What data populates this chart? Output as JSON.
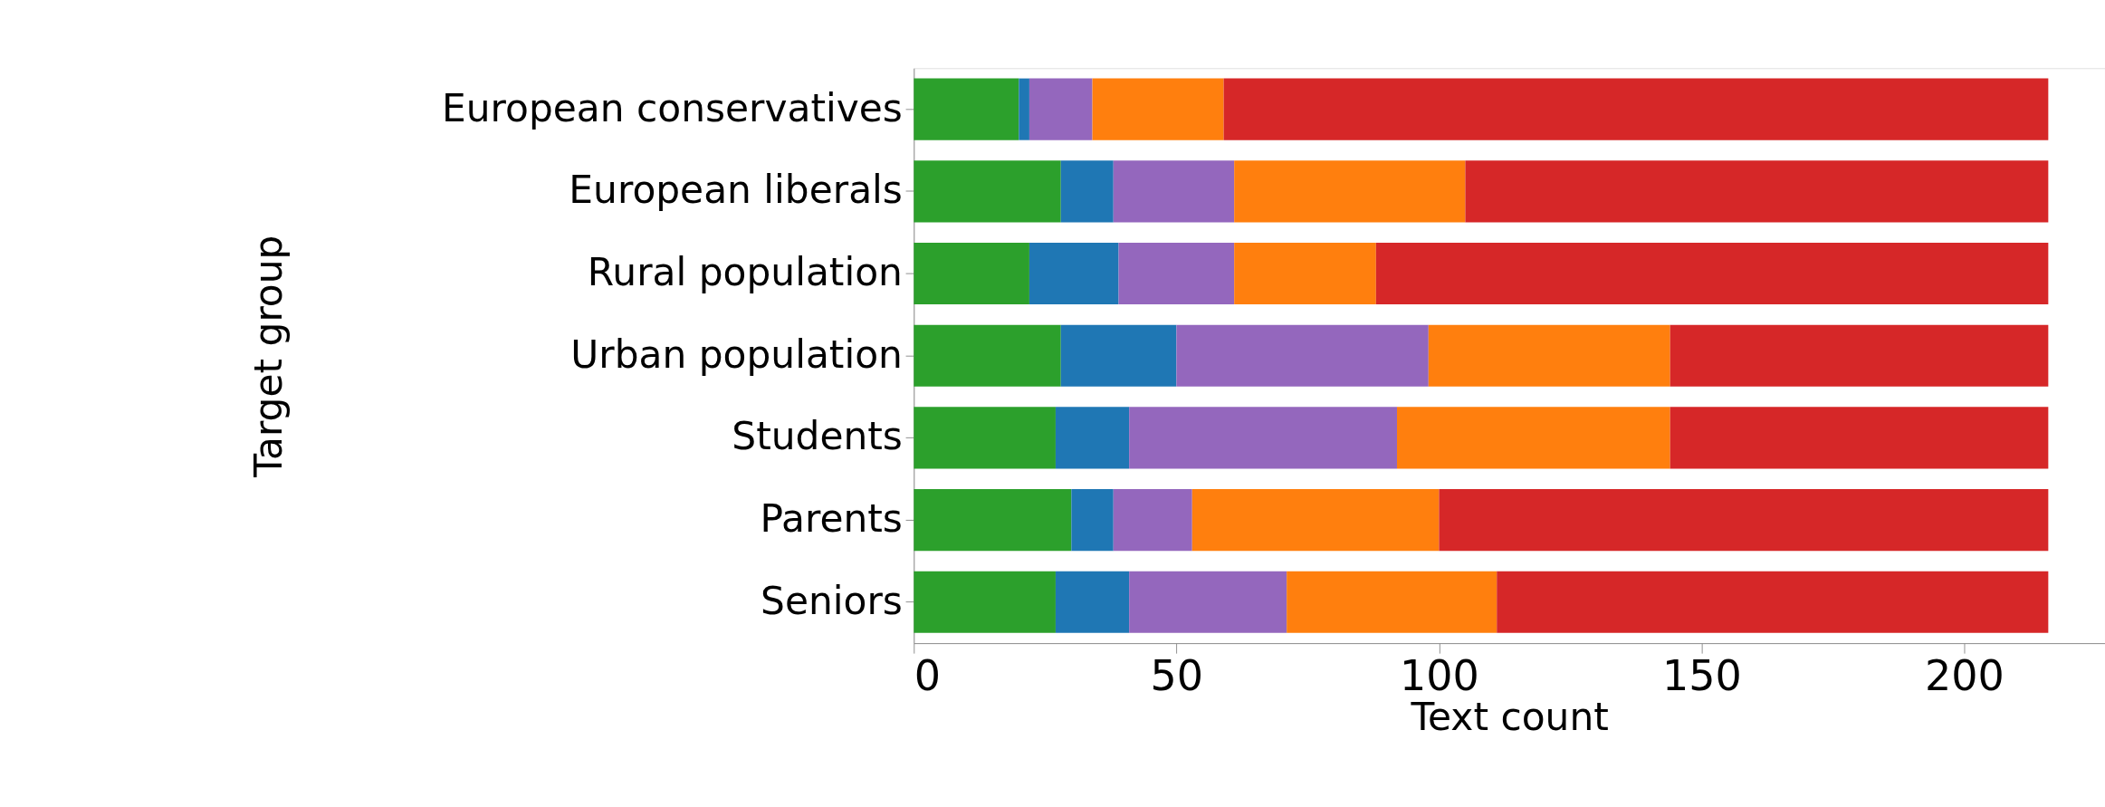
{
  "chart_data": {
    "type": "bar",
    "orientation": "horizontal",
    "stacked": true,
    "xlabel": "Text count",
    "ylabel": "Target group",
    "categories": [
      "European conservatives",
      "European liberals",
      "Rural population",
      "Urban population",
      "Students",
      "Parents",
      "Seniors"
    ],
    "series": [
      {
        "color": "#2ca02c",
        "values": [
          20,
          28,
          22,
          28,
          27,
          30,
          27
        ]
      },
      {
        "color": "#1f77b4",
        "values": [
          2,
          10,
          17,
          22,
          14,
          8,
          14
        ]
      },
      {
        "color": "#9467bd",
        "values": [
          12,
          23,
          22,
          48,
          51,
          15,
          30
        ]
      },
      {
        "color": "#ff7f0e",
        "values": [
          25,
          44,
          27,
          46,
          52,
          47,
          40
        ]
      },
      {
        "color": "#d62728",
        "values": [
          157,
          111,
          128,
          72,
          72,
          116,
          105
        ]
      }
    ],
    "xlim": [
      0,
      226.8
    ],
    "xticks": [
      0,
      50,
      100,
      150,
      200
    ],
    "grid": false,
    "legend": false
  }
}
